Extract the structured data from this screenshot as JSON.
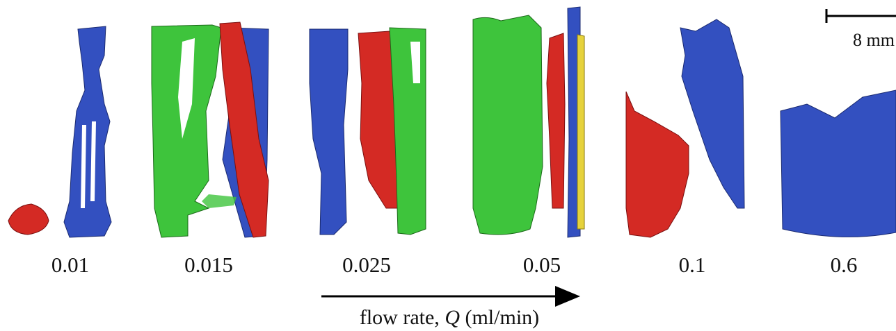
{
  "figure": {
    "panels": [
      {
        "label": "0.01"
      },
      {
        "label": "0.015"
      },
      {
        "label": "0.025"
      },
      {
        "label": "0.05"
      },
      {
        "label": "0.1"
      },
      {
        "label": "0.6"
      }
    ],
    "axis_label": {
      "prefix": "flow rate, ",
      "symbol": "Q",
      "suffix": " (ml/min)"
    },
    "scale_bar": {
      "label": "8 mm"
    }
  }
}
